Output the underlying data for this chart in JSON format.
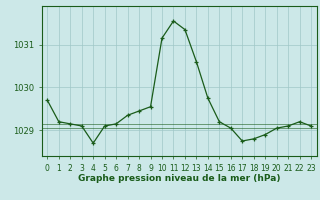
{
  "x": [
    0,
    1,
    2,
    3,
    4,
    5,
    6,
    7,
    8,
    9,
    10,
    11,
    12,
    13,
    14,
    15,
    16,
    17,
    18,
    19,
    20,
    21,
    22,
    23
  ],
  "y": [
    1029.7,
    1029.2,
    1029.15,
    1029.1,
    1028.7,
    1029.1,
    1029.15,
    1029.35,
    1029.45,
    1029.55,
    1031.15,
    1031.55,
    1031.35,
    1030.6,
    1029.75,
    1029.2,
    1029.05,
    1028.75,
    1028.8,
    1028.9,
    1029.05,
    1029.1,
    1029.2,
    1029.1
  ],
  "y_min_line": 1029.05,
  "y_max_line": 1029.15,
  "line_color": "#1a5c1a",
  "bg_color": "#cce8e8",
  "grid_color": "#a0c8c8",
  "tick_label_color": "#1a5c1a",
  "xlabel": "Graphe pression niveau de la mer (hPa)",
  "yticks": [
    1029,
    1030,
    1031
  ],
  "ylim": [
    1028.4,
    1031.9
  ],
  "xlim": [
    -0.5,
    23.5
  ],
  "axis_label_fontsize": 6.5,
  "tick_fontsize": 6.0
}
